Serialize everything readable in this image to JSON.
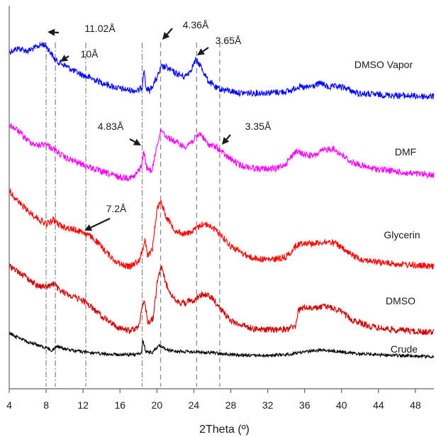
{
  "chart_data": {
    "type": "line",
    "title": "",
    "xlabel": "2Theta (º)",
    "ylabel": "",
    "xlim": [
      4,
      50
    ],
    "xticks": [
      "4",
      "8",
      "12",
      "16",
      "20",
      "24",
      "28",
      "32",
      "36",
      "40",
      "44",
      "48"
    ],
    "xtick_values": [
      4,
      8,
      12,
      16,
      20,
      24,
      28,
      32,
      36,
      40,
      44,
      48
    ],
    "grid": false,
    "y_units": "arbitrary intensity (stacked)",
    "series": [
      {
        "name": "DMSO Vapor",
        "color": "#0000ff",
        "points": [
          [
            4,
            73
          ],
          [
            5,
            68
          ],
          [
            6,
            72
          ],
          [
            7,
            66
          ],
          [
            7.6,
            62
          ],
          [
            8.0,
            65
          ],
          [
            8.4,
            72
          ],
          [
            9,
            85
          ],
          [
            10,
            92
          ],
          [
            11,
            100
          ],
          [
            12,
            106
          ],
          [
            13,
            111
          ],
          [
            14,
            116
          ],
          [
            15,
            121
          ],
          [
            16,
            125
          ],
          [
            17,
            127
          ],
          [
            18,
            128
          ],
          [
            18.4,
            122
          ],
          [
            18.6,
            94
          ],
          [
            18.8,
            124
          ],
          [
            19.2,
            128
          ],
          [
            20,
            110
          ],
          [
            20.5,
            94
          ],
          [
            21,
            95
          ],
          [
            22,
            103
          ],
          [
            23,
            108
          ],
          [
            23.6,
            100
          ],
          [
            24.2,
            85
          ],
          [
            24.7,
            92
          ],
          [
            25.5,
            113
          ],
          [
            26.5,
            125
          ],
          [
            27.5,
            127
          ],
          [
            29,
            131
          ],
          [
            31,
            131
          ],
          [
            33,
            130
          ],
          [
            34.5,
            128
          ],
          [
            35.2,
            122
          ],
          [
            36,
            124
          ],
          [
            37,
            121
          ],
          [
            37.8,
            117
          ],
          [
            38.5,
            123
          ],
          [
            39.5,
            122
          ],
          [
            40.5,
            124
          ],
          [
            41.5,
            131
          ],
          [
            43,
            133
          ],
          [
            45,
            134
          ],
          [
            47,
            135
          ],
          [
            49,
            136
          ],
          [
            50,
            136
          ]
        ]
      },
      {
        "name": "DMF",
        "color": "#ff00ff",
        "points": [
          [
            4,
            175
          ],
          [
            5,
            185
          ],
          [
            6,
            198
          ],
          [
            7,
            205
          ],
          [
            8,
            203
          ],
          [
            9,
            212
          ],
          [
            10,
            222
          ],
          [
            12,
            232
          ],
          [
            14,
            242
          ],
          [
            16,
            250
          ],
          [
            17.5,
            250
          ],
          [
            18.3,
            235
          ],
          [
            18.6,
            214
          ],
          [
            18.9,
            238
          ],
          [
            19.5,
            240
          ],
          [
            20,
            204
          ],
          [
            20.5,
            182
          ],
          [
            21,
            192
          ],
          [
            22,
            200
          ],
          [
            23,
            207
          ],
          [
            24,
            197
          ],
          [
            24.7,
            188
          ],
          [
            25.5,
            203
          ],
          [
            26.5,
            208
          ],
          [
            27.5,
            220
          ],
          [
            29,
            233
          ],
          [
            31,
            238
          ],
          [
            33,
            238
          ],
          [
            34,
            230
          ],
          [
            35,
            213
          ],
          [
            36,
            218
          ],
          [
            37,
            220
          ],
          [
            38,
            212
          ],
          [
            39,
            209
          ],
          [
            40,
            218
          ],
          [
            41,
            228
          ],
          [
            43,
            237
          ],
          [
            45,
            240
          ],
          [
            47,
            244
          ],
          [
            49,
            246
          ],
          [
            50,
            247
          ]
        ]
      },
      {
        "name": "Glycerin",
        "color": "#ff0000",
        "points": [
          [
            4,
            268
          ],
          [
            5,
            285
          ],
          [
            6,
            297
          ],
          [
            7,
            307
          ],
          [
            8,
            316
          ],
          [
            8.8,
            310
          ],
          [
            9.5,
            318
          ],
          [
            10.5,
            322
          ],
          [
            12,
            327
          ],
          [
            13,
            335
          ],
          [
            14,
            348
          ],
          [
            15,
            362
          ],
          [
            16,
            372
          ],
          [
            17,
            376
          ],
          [
            18,
            368
          ],
          [
            18.4,
            356
          ],
          [
            18.7,
            336
          ],
          [
            19,
            360
          ],
          [
            19.5,
            352
          ],
          [
            20,
            295
          ],
          [
            20.4,
            283
          ],
          [
            21,
            305
          ],
          [
            22,
            325
          ],
          [
            23,
            330
          ],
          [
            24,
            325
          ],
          [
            25,
            315
          ],
          [
            26,
            320
          ],
          [
            27,
            332
          ],
          [
            28,
            347
          ],
          [
            30,
            362
          ],
          [
            31,
            365
          ],
          [
            32.5,
            366
          ],
          [
            34,
            362
          ],
          [
            35.2,
            345
          ],
          [
            36,
            342
          ],
          [
            37,
            343
          ],
          [
            38.5,
            341
          ],
          [
            39.5,
            344
          ],
          [
            40.5,
            355
          ],
          [
            42,
            365
          ],
          [
            44,
            370
          ],
          [
            46,
            372
          ],
          [
            48,
            374
          ],
          [
            50,
            376
          ]
        ]
      },
      {
        "name": "DMSO",
        "color": "#cc0000",
        "points": [
          [
            4,
            375
          ],
          [
            5,
            383
          ],
          [
            6,
            392
          ],
          [
            7,
            402
          ],
          [
            8,
            405
          ],
          [
            8.8,
            400
          ],
          [
            9.5,
            410
          ],
          [
            11,
            418
          ],
          [
            12.2,
            425
          ],
          [
            13,
            434
          ],
          [
            14,
            445
          ],
          [
            15,
            455
          ],
          [
            16,
            463
          ],
          [
            17,
            466
          ],
          [
            18,
            462
          ],
          [
            18.4,
            430
          ],
          [
            18.7,
            426
          ],
          [
            19,
            455
          ],
          [
            19.6,
            448
          ],
          [
            20.1,
            390
          ],
          [
            20.5,
            378
          ],
          [
            21,
            400
          ],
          [
            22,
            425
          ],
          [
            23,
            427
          ],
          [
            24,
            423
          ],
          [
            25,
            414
          ],
          [
            26,
            420
          ],
          [
            27,
            437
          ],
          [
            28,
            452
          ],
          [
            30,
            462
          ],
          [
            32,
            465
          ],
          [
            34,
            464
          ],
          [
            35,
            460
          ],
          [
            35.3,
            438
          ],
          [
            36,
            433
          ],
          [
            37,
            435
          ],
          [
            38,
            432
          ],
          [
            39,
            434
          ],
          [
            40,
            440
          ],
          [
            41,
            450
          ],
          [
            43,
            460
          ],
          [
            45,
            464
          ],
          [
            47,
            466
          ],
          [
            49,
            468
          ],
          [
            50,
            468
          ]
        ]
      },
      {
        "name": "Crude",
        "color": "#000000",
        "points": [
          [
            4,
            470
          ],
          [
            5,
            476
          ],
          [
            6,
            482
          ],
          [
            7,
            486
          ],
          [
            8,
            490
          ],
          [
            8.6,
            494
          ],
          [
            9.2,
            488
          ],
          [
            10,
            492
          ],
          [
            12,
            496
          ],
          [
            14,
            499
          ],
          [
            16,
            500
          ],
          [
            17.5,
            500
          ],
          [
            18.3,
            498
          ],
          [
            18.5,
            480
          ],
          [
            18.8,
            496
          ],
          [
            19.5,
            497
          ],
          [
            20,
            490
          ],
          [
            20.3,
            487
          ],
          [
            21,
            493
          ],
          [
            22,
            495
          ],
          [
            24,
            496
          ],
          [
            26,
            497
          ],
          [
            28,
            500
          ],
          [
            30,
            501
          ],
          [
            32,
            501
          ],
          [
            34,
            500
          ],
          [
            36,
            496
          ],
          [
            38,
            493
          ],
          [
            40,
            496
          ],
          [
            42,
            499
          ],
          [
            44,
            500
          ],
          [
            46,
            501
          ],
          [
            48,
            502
          ],
          [
            50,
            503
          ]
        ]
      }
    ],
    "series_labels": [
      "DMSO Vapor",
      "DMF",
      "Glycerin",
      "DMSO",
      "Crude"
    ],
    "reference_lines": [
      {
        "x": 8.0,
        "style": "dash-dot"
      },
      {
        "x": 9.0,
        "style": "dash-dot"
      },
      {
        "x": 12.3,
        "style": "dash-dot"
      },
      {
        "x": 18.4,
        "style": "dash-dot"
      },
      {
        "x": 20.4,
        "style": "dash"
      },
      {
        "x": 24.3,
        "style": "dash"
      },
      {
        "x": 26.8,
        "style": "dash"
      }
    ],
    "annotations": [
      {
        "text": "11.02Å",
        "x": 8.0
      },
      {
        "text": "10Å",
        "x": 9.0
      },
      {
        "text": "7.2Å",
        "x": 12.3
      },
      {
        "text": "4.83Å",
        "x": 18.4
      },
      {
        "text": "4.36Å",
        "x": 20.4
      },
      {
        "text": "3.65Å",
        "x": 24.3
      },
      {
        "text": "3.35Å",
        "x": 26.8
      }
    ]
  }
}
